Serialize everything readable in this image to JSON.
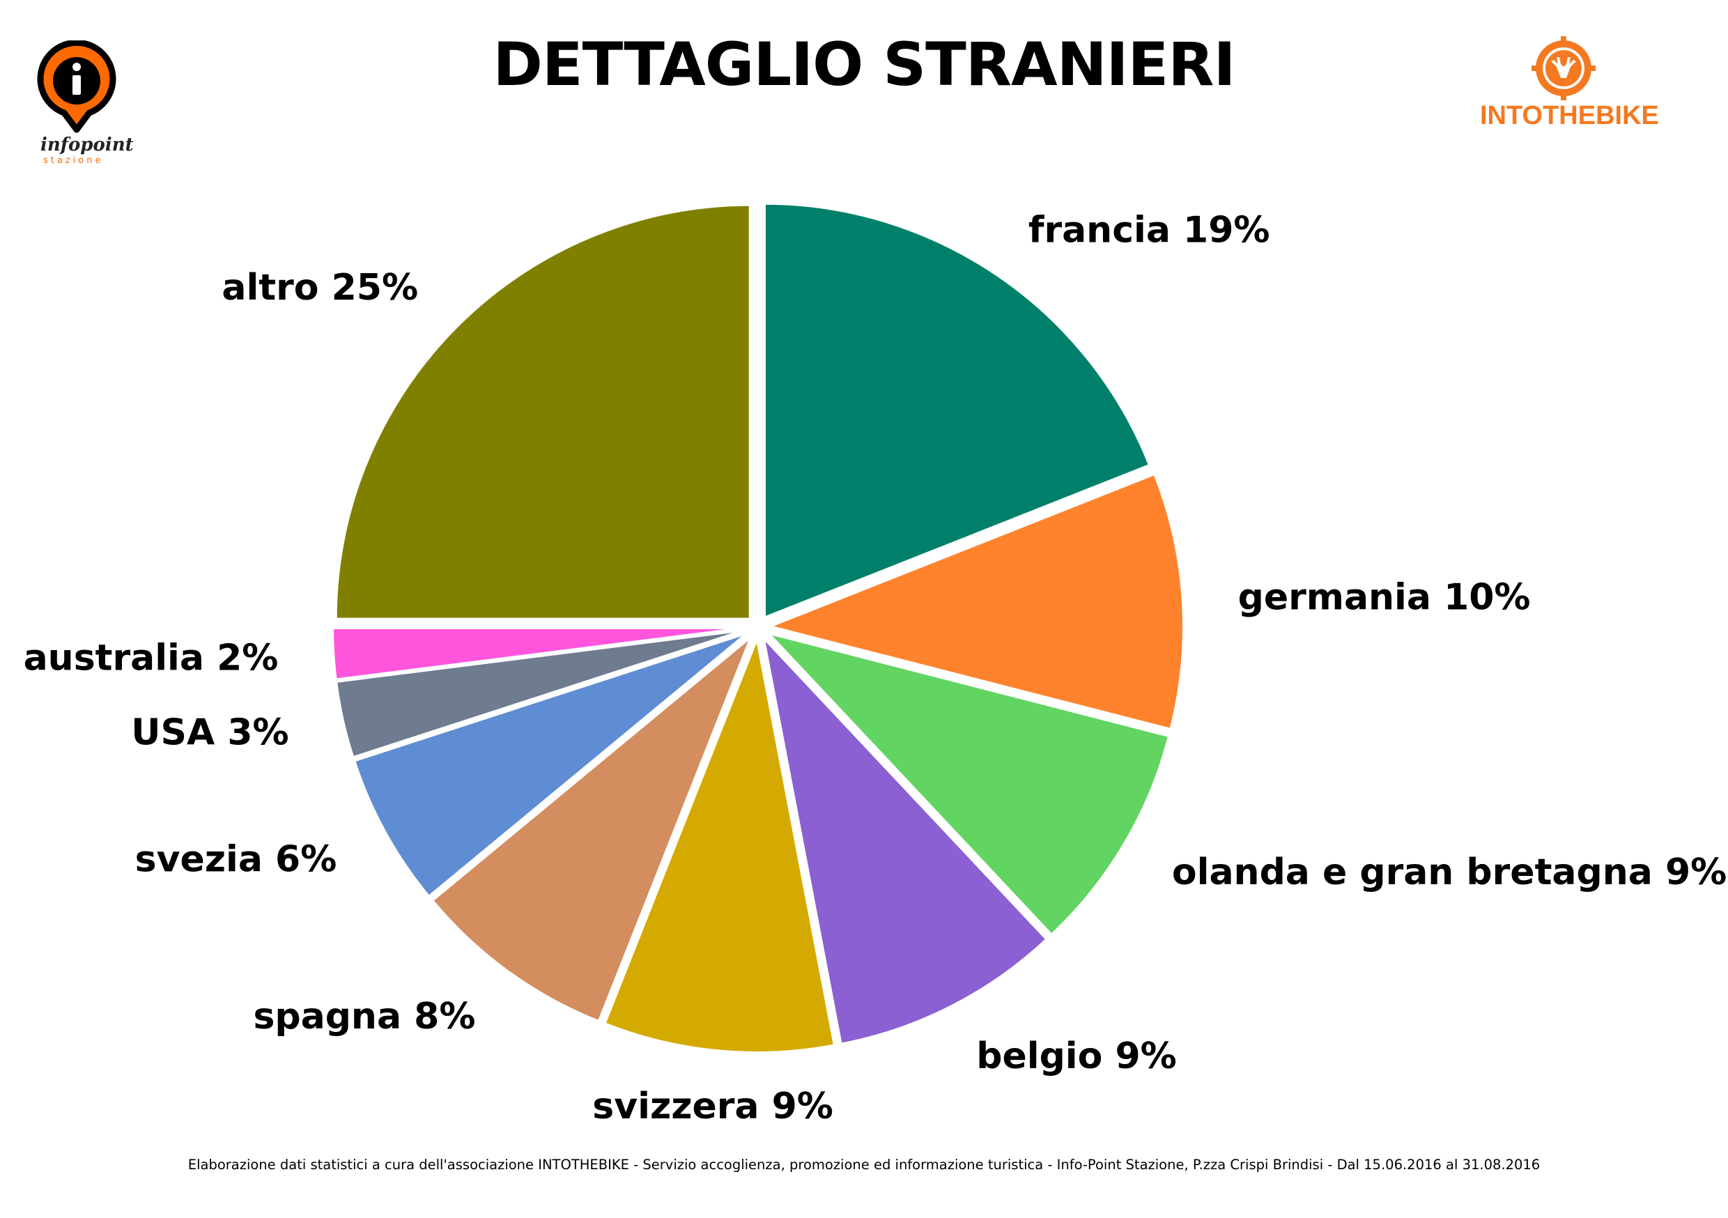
{
  "header": {
    "title": "DETTAGLIO STRANIERI"
  },
  "logos": {
    "left": {
      "icon": "info-pin-icon",
      "word": "infopoint",
      "sub": "stazione",
      "color": "#ff6a00"
    },
    "right": {
      "icon": "deer-sprocket-icon",
      "word": "INTOTHEBIKE",
      "color": "#f47920"
    }
  },
  "chart_data": {
    "type": "pie",
    "title": "DETTAGLIO STRANIERI",
    "exploded": true,
    "start": "top, clockwise",
    "slices": [
      {
        "name": "francia",
        "value": 19,
        "label": "francia 19%",
        "color": "#00806a"
      },
      {
        "name": "germania",
        "value": 10,
        "label": "germania 10%",
        "color": "#ff832c"
      },
      {
        "name": "olanda e gran bretagna",
        "value": 9,
        "label": "olanda e gran bretagna 9%",
        "color": "#62d462"
      },
      {
        "name": "belgio",
        "value": 9,
        "label": "belgio 9%",
        "color": "#8b60d2"
      },
      {
        "name": "svizzera",
        "value": 9,
        "label": "svizzera 9%",
        "color": "#d4aa00"
      },
      {
        "name": "spagna",
        "value": 8,
        "label": "spagna 8%",
        "color": "#d38d5f"
      },
      {
        "name": "svezia",
        "value": 6,
        "label": "svezia 6%",
        "color": "#5f8dd3"
      },
      {
        "name": "USA",
        "value": 3,
        "label": "USA 3%",
        "color": "#6f7b8f"
      },
      {
        "name": "australia",
        "value": 2,
        "label": "australia 2%",
        "color": "#ff55dd"
      },
      {
        "name": "altro",
        "value": 25,
        "label": "altro 25%",
        "color": "#808000"
      }
    ]
  },
  "footer": {
    "note": "Elaborazione dati statistici a cura dell'associazione INTOTHEBIKE - Servizio accoglienza, promozione ed informazione turistica - Info-Point Stazione, P.zza Crispi Brindisi - Dal 15.06.2016 al 31.08.2016"
  }
}
